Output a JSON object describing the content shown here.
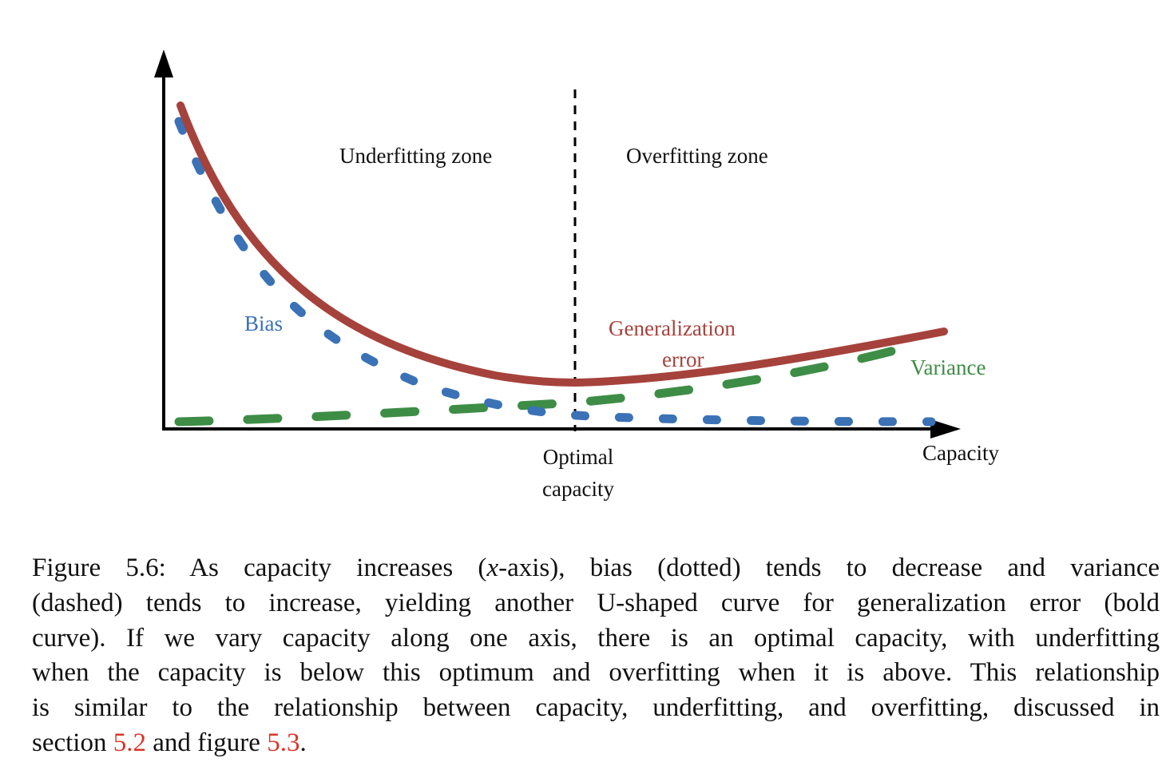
{
  "chart_data": {
    "type": "line",
    "xlabel": "Capacity",
    "ylabel": "",
    "series": [
      {
        "name": "Bias",
        "style": "dotted",
        "color": "#3b72b6"
      },
      {
        "name": "Variance",
        "style": "dashed",
        "color": "#3e8d46"
      },
      {
        "name": "Generalization error",
        "style": "bold",
        "color": "#a6423c"
      }
    ],
    "annotations": {
      "underfitting_zone": "Underfitting zone",
      "overfitting_zone": "Overfitting zone",
      "optimal_line1": "Optimal",
      "optimal_line2": "capacity",
      "bias": "Bias",
      "gen_error_line1": "Generalization",
      "gen_error_line2": "error",
      "variance": "Variance",
      "capacity": "Capacity"
    },
    "grid": false
  },
  "caption": {
    "line1_a": "Figure 5.6: As capacity increases (",
    "line1_var": "x",
    "line1_b": "-axis), bias (dotted) tends to decrease and variance",
    "line2": "(dashed) tends to increase, yielding another U-shaped curve for generalization error (bold",
    "line3": "curve). If we vary capacity along one axis, there is an optimal capacity, with underfitting",
    "line4": "when the capacity is below this optimum and overfitting when it is above. This relationship",
    "line5": "is similar to the relationship between capacity, underfitting, and overfitting, discussed in",
    "line6_a": "section ",
    "ref1": "5.2",
    "line6_b": " and figure ",
    "ref2": "5.3",
    "line6_c": "."
  }
}
